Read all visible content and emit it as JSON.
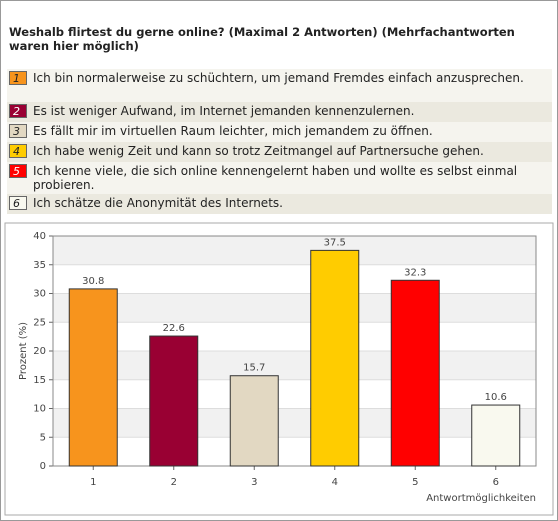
{
  "chart_data": {
    "type": "bar",
    "title": "Weshalb flirtest du gerne online? (Maximal 2 Antworten) (Mehrfachantworten waren hier möglich)",
    "categories": [
      "1",
      "2",
      "3",
      "4",
      "5",
      "6"
    ],
    "legend": [
      "Ich bin normalerweise zu schüchtern, um jemand Fremdes einfach anzusprechen.",
      "Es ist weniger Aufwand, im Internet jemanden kennenzulernen.",
      "Es fällt mir im virtuellen Raum leichter, mich jemandem zu öffnen.",
      "Ich habe wenig Zeit und kann so trotz Zeitmangel auf Partnersuche gehen.",
      "Ich kenne viele, die sich online kennengelernt haben und wollte es selbst einmal probieren.",
      "Ich schätze die Anonymität des Internets."
    ],
    "values": [
      30.8,
      22.6,
      15.7,
      37.5,
      32.3,
      10.6
    ],
    "colors": [
      "#f7941d",
      "#990033",
      "#e2d8c2",
      "#ffcc00",
      "#ff0000",
      "#f9f9ef"
    ],
    "ylabel": "Prozent (%)",
    "xlabel": "Antwortmöglichkeiten",
    "ylim": [
      0,
      40
    ],
    "yticks": [
      0,
      5,
      10,
      15,
      20,
      25,
      30,
      35,
      40
    ]
  }
}
